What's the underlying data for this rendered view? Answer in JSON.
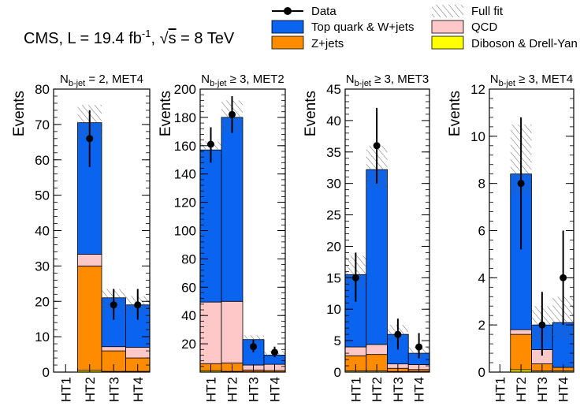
{
  "header": {
    "title_main": "CMS, L = 19.4 fb",
    "title_lumi_sup": "-1",
    "title_sep": ", ",
    "title_sqrt": "√",
    "title_s": "s",
    "title_energy": " = 8 TeV"
  },
  "legend": {
    "placement": "top",
    "entries": [
      {
        "key": "data",
        "label": "Data"
      },
      {
        "key": "fit",
        "label": "Full fit"
      },
      {
        "key": "top",
        "label": "Top quark & W+jets"
      },
      {
        "key": "qcd",
        "label": "QCD"
      },
      {
        "key": "zjets",
        "label": "Z+jets"
      },
      {
        "key": "diboson",
        "label": "Diboson & Drell-Yan"
      }
    ]
  },
  "colors": {
    "top": "#0a64f0",
    "qcd": "#ffc8c8",
    "zjets": "#ff8c00",
    "diboson": "#ffff00",
    "data": "#000000"
  },
  "chart_data": [
    {
      "type": "bar",
      "stacked": true,
      "title": {
        "main": "N",
        "sub": "b-jet",
        "rest": " = 2, MET4"
      },
      "ylabel": "Events",
      "categories": [
        "HT1",
        "HT2",
        "HT3",
        "HT4"
      ],
      "ylim": [
        0,
        80
      ],
      "yticks": [
        0,
        10,
        20,
        30,
        40,
        50,
        60,
        70,
        80
      ],
      "series": [
        {
          "key": "diboson",
          "values": [
            0,
            0.5,
            0.2,
            0.2
          ]
        },
        {
          "key": "zjets",
          "values": [
            0,
            29.5,
            5.8,
            3.8
          ]
        },
        {
          "key": "qcd",
          "values": [
            0,
            3.3,
            1.2,
            3.0
          ]
        },
        {
          "key": "top",
          "values": [
            0,
            37.2,
            13.8,
            12.0
          ]
        }
      ],
      "fit_band": [
        [
          0,
          0
        ],
        [
          66,
          75.5
        ],
        [
          17.5,
          23.5
        ],
        [
          16.5,
          21.5
        ]
      ],
      "data": [
        {
          "x": "HT2",
          "y": 66,
          "lo": 58,
          "hi": 74
        },
        {
          "x": "HT3",
          "y": 19,
          "lo": 14.8,
          "hi": 23.5
        },
        {
          "x": "HT4",
          "y": 19,
          "lo": 14.8,
          "hi": 23.5
        }
      ]
    },
    {
      "type": "bar",
      "stacked": true,
      "title": {
        "main": "N",
        "sub": "b-jet",
        "rest": " ≥ 3, MET2"
      },
      "ylabel": "Events",
      "categories": [
        "HT1",
        "HT2",
        "HT3",
        "HT4"
      ],
      "ylim": [
        0,
        200
      ],
      "yticks": [
        20,
        40,
        60,
        80,
        100,
        120,
        140,
        160,
        180,
        200
      ],
      "series": [
        {
          "key": "diboson",
          "values": [
            1.0,
            0.5,
            0.2,
            0.1
          ]
        },
        {
          "key": "zjets",
          "values": [
            5.0,
            6.0,
            1.3,
            1.0
          ]
        },
        {
          "key": "qcd",
          "values": [
            43.5,
            43.5,
            3.5,
            4.4
          ]
        },
        {
          "key": "top",
          "values": [
            107.5,
            130.0,
            18.0,
            6.5
          ]
        }
      ],
      "fit_band": [
        [
          153,
          163
        ],
        [
          170,
          192
        ],
        [
          21,
          26
        ],
        [
          10,
          15
        ]
      ],
      "data": [
        {
          "x": "HT1",
          "y": 161,
          "lo": 148,
          "hi": 173
        },
        {
          "x": "HT2",
          "y": 182,
          "lo": 169,
          "hi": 195
        },
        {
          "x": "HT3",
          "y": 18,
          "lo": 14,
          "hi": 23
        },
        {
          "x": "HT4",
          "y": 14,
          "lo": 10.5,
          "hi": 18
        }
      ]
    },
    {
      "type": "bar",
      "stacked": true,
      "title": {
        "main": "N",
        "sub": "b-jet",
        "rest": " ≥ 3, MET3"
      },
      "ylabel": "Events",
      "categories": [
        "HT1",
        "HT2",
        "HT3",
        "HT4"
      ],
      "ylim": [
        0,
        45
      ],
      "yticks": [
        0,
        5,
        10,
        15,
        20,
        25,
        30,
        35,
        40,
        45
      ],
      "series": [
        {
          "key": "diboson",
          "values": [
            0.2,
            0.2,
            0.1,
            0.1
          ]
        },
        {
          "key": "zjets",
          "values": [
            2.4,
            2.6,
            0.5,
            0.3
          ]
        },
        {
          "key": "qcd",
          "values": [
            1.4,
            1.6,
            0.7,
            0.8
          ]
        },
        {
          "key": "top",
          "values": [
            11.5,
            27.8,
            4.7,
            1.8
          ]
        }
      ],
      "fit_band": [
        [
          13.5,
          18.5
        ],
        [
          29,
          36
        ],
        [
          5,
          7.5
        ],
        [
          2.3,
          4
        ]
      ],
      "data": [
        {
          "x": "HT1",
          "y": 15,
          "lo": 11.2,
          "hi": 19
        },
        {
          "x": "HT2",
          "y": 36,
          "lo": 30,
          "hi": 42
        },
        {
          "x": "HT3",
          "y": 6,
          "lo": 3.6,
          "hi": 8.5
        },
        {
          "x": "HT4",
          "y": 4,
          "lo": 2.2,
          "hi": 6.2
        }
      ]
    },
    {
      "type": "bar",
      "stacked": true,
      "title": {
        "main": "N",
        "sub": "b-jet",
        "rest": " ≥ 3, MET4"
      },
      "ylabel": "Events",
      "categories": [
        "HT1",
        "HT2",
        "HT3",
        "HT4"
      ],
      "ylim": [
        0,
        12
      ],
      "yticks": [
        0,
        2,
        4,
        6,
        8,
        10,
        12
      ],
      "series": [
        {
          "key": "diboson",
          "values": [
            0,
            0.1,
            0.05,
            0.05
          ]
        },
        {
          "key": "zjets",
          "values": [
            0,
            1.5,
            0.3,
            0.15
          ]
        },
        {
          "key": "qcd",
          "values": [
            0,
            0.2,
            0.6,
            0
          ]
        },
        {
          "key": "top",
          "values": [
            0,
            6.6,
            1.05,
            1.9
          ]
        }
      ],
      "fit_band": [
        [
          0,
          0
        ],
        [
          7.5,
          10.5
        ],
        [
          1.3,
          2.8
        ],
        [
          1.4,
          3.2
        ]
      ],
      "data": [
        {
          "x": "HT2",
          "y": 8,
          "lo": 5.2,
          "hi": 10.8
        },
        {
          "x": "HT3",
          "y": 2,
          "lo": 0.7,
          "hi": 3.4
        },
        {
          "x": "HT4",
          "y": 4,
          "lo": 2.0,
          "hi": 6.0
        }
      ]
    }
  ]
}
